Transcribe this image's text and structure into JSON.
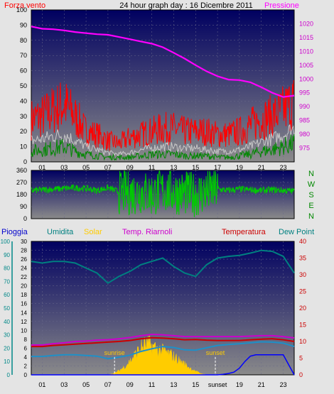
{
  "header": {
    "left_label": "Forza vento",
    "center_title": "24 hour graph day : 16 Dicembre 2011",
    "right_label": "Pressione"
  },
  "colors": {
    "background": "#e4e4e4",
    "plot_top": "#000060",
    "plot_bottom": "#8a8a8a",
    "wind": "#ff0000",
    "gust": "#ff0000",
    "wind_avg": "#c8c8c8",
    "wind_low": "#008800",
    "pressure": "#ff00ff",
    "direction": "#00cc00",
    "humidity": "#008080",
    "solar": "#ffcc00",
    "temp_inside": "#cc00cc",
    "temperature": "#cc0000",
    "dew_point": "#1e90c8",
    "rain": "#0000ff",
    "axis_left": "#000000",
    "axis_pressure": "#cc00cc",
    "axis_temp": "#cc0000",
    "axis_rain": "#008888"
  },
  "chart_data": [
    {
      "type": "line",
      "x_ticks": [
        "01",
        "03",
        "05",
        "07",
        "09",
        "11",
        "13",
        "15",
        "17",
        "19",
        "21",
        "23"
      ],
      "left_axis": {
        "range": [
          0,
          100
        ],
        "ticks": [
          0,
          10,
          20,
          30,
          40,
          50,
          60,
          70,
          80,
          90,
          100
        ]
      },
      "right_axis": {
        "range": [
          970,
          1025
        ],
        "ticks": [
          975,
          980,
          985,
          990,
          995,
          1000,
          1005,
          1010,
          1015,
          1020
        ]
      },
      "series": [
        {
          "name": "Pressione",
          "axis": "right",
          "x": [
            0,
            1,
            2,
            3,
            4,
            5,
            6,
            7,
            8,
            9,
            10,
            11,
            12,
            13,
            14,
            15,
            16,
            17,
            18,
            19,
            20,
            21,
            22,
            23,
            24
          ],
          "values": [
            1019,
            1018.2,
            1018,
            1017.6,
            1017,
            1016.6,
            1016.2,
            1016,
            1015.2,
            1014.4,
            1013.6,
            1012.8,
            1011.5,
            1009.5,
            1007.4,
            1005,
            1002.8,
            1001,
            999.8,
            999.6,
            998.8,
            997,
            995,
            993.5,
            994
          ]
        },
        {
          "name": "Raffica",
          "axis": "left",
          "x": [
            0,
            1,
            2,
            3,
            4,
            5,
            6,
            7,
            8,
            9,
            10,
            11,
            12,
            13,
            14,
            15,
            16,
            17,
            18,
            19,
            20,
            21,
            22,
            23,
            24
          ],
          "values": [
            28,
            30,
            34,
            38,
            30,
            20,
            18,
            14,
            12,
            16,
            18,
            20,
            22,
            22,
            20,
            20,
            20,
            18,
            18,
            20,
            24,
            28,
            30,
            34,
            40
          ]
        },
        {
          "name": "Media",
          "axis": "left",
          "x": [
            0,
            1,
            2,
            3,
            4,
            5,
            6,
            7,
            8,
            9,
            10,
            11,
            12,
            13,
            14,
            15,
            16,
            17,
            18,
            19,
            20,
            21,
            22,
            23,
            24
          ],
          "values": [
            14,
            15,
            17,
            18,
            14,
            10,
            8,
            6,
            5,
            6,
            8,
            9,
            10,
            10,
            9,
            9,
            8,
            7,
            7,
            8,
            10,
            13,
            15,
            18,
            22
          ]
        },
        {
          "name": "Vento",
          "axis": "left",
          "x": [
            0,
            1,
            2,
            3,
            4,
            5,
            6,
            7,
            8,
            9,
            10,
            11,
            12,
            13,
            14,
            15,
            16,
            17,
            18,
            19,
            20,
            21,
            22,
            23,
            24
          ],
          "values": [
            7,
            8,
            9,
            10,
            7,
            5,
            4,
            3,
            3,
            3,
            4,
            5,
            5,
            5,
            4,
            4,
            4,
            3,
            3,
            4,
            5,
            7,
            8,
            10,
            12
          ]
        }
      ]
    },
    {
      "type": "scatter",
      "x_ticks": [
        "01",
        "03",
        "05",
        "07",
        "09",
        "11",
        "13",
        "15",
        "17",
        "19",
        "21",
        "23"
      ],
      "left_axis": {
        "range": [
          0,
          360
        ],
        "ticks": [
          0,
          90,
          180,
          270,
          360
        ]
      },
      "right_labels": [
        "N",
        "W",
        "S",
        "E",
        "N"
      ],
      "series": [
        {
          "name": "Direzione",
          "x": [
            0,
            1,
            2,
            3,
            4,
            5,
            6,
            7,
            8,
            9,
            10,
            11,
            12,
            13,
            14,
            15,
            16,
            17,
            18,
            19,
            20,
            21,
            22,
            23,
            24
          ],
          "values": [
            210,
            215,
            220,
            225,
            230,
            225,
            210,
            230,
            200,
            190,
            200,
            180,
            210,
            200,
            190,
            180,
            200,
            220,
            210,
            220,
            215,
            210,
            215,
            210,
            205
          ]
        }
      ]
    },
    {
      "type": "line",
      "legend": [
        "Pioggia",
        "Umidita",
        "Solar",
        "Temp. Riarnoli",
        "Temperatura",
        "Dew Point"
      ],
      "x_ticks": [
        "01",
        "03",
        "05",
        "07",
        "09",
        "11",
        "13",
        "15",
        "sunset",
        "19",
        "21",
        "23"
      ],
      "annotations": [
        "sunrise",
        "sunset"
      ],
      "rain_axis": {
        "range": [
          0,
          100
        ],
        "ticks": [
          0,
          10,
          20,
          30,
          40,
          50,
          60,
          70,
          80,
          90,
          100
        ]
      },
      "inner_axis": {
        "range": [
          0,
          30
        ],
        "ticks": [
          0,
          2,
          4,
          6,
          8,
          10,
          12,
          14,
          16,
          18,
          20,
          22,
          24,
          26,
          28,
          30
        ]
      },
      "temp_axis": {
        "range": [
          0,
          40
        ],
        "ticks": [
          0,
          5,
          10,
          15,
          20,
          25,
          30,
          35,
          40
        ]
      },
      "series": [
        {
          "name": "Umidita",
          "axis": "temp",
          "x": [
            0,
            1,
            2,
            3,
            4,
            5,
            6,
            7,
            8,
            9,
            10,
            11,
            12,
            13,
            14,
            15,
            16,
            17,
            18,
            19,
            20,
            21,
            22,
            23,
            24
          ],
          "values": [
            34,
            33.5,
            34,
            34,
            33.5,
            32,
            30.5,
            27.5,
            29.5,
            31,
            33,
            34,
            35,
            32.5,
            30.5,
            29.5,
            33,
            35,
            35.5,
            35.8,
            36.5,
            37.3,
            37,
            35.5,
            30.5
          ]
        },
        {
          "name": "Temp. Riarnoli",
          "axis": "inner",
          "x": [
            0,
            1,
            2,
            3,
            4,
            5,
            6,
            7,
            8,
            9,
            10,
            11,
            12,
            13,
            14,
            15,
            16,
            17,
            18,
            19,
            20,
            21,
            22,
            23,
            24
          ],
          "values": [
            6.7,
            6.7,
            7,
            7.2,
            7.5,
            7.6,
            7.8,
            7.9,
            8.1,
            8.4,
            8.8,
            9.1,
            9,
            8.8,
            8.6,
            8.6,
            8.6,
            8.6,
            8.6,
            8.6,
            8.7,
            8.8,
            8.8,
            8.6,
            8.3
          ]
        },
        {
          "name": "Temperatura",
          "axis": "temp",
          "x": [
            0,
            1,
            2,
            3,
            4,
            5,
            6,
            7,
            8,
            9,
            10,
            11,
            12,
            13,
            14,
            15,
            16,
            17,
            18,
            19,
            20,
            21,
            22,
            23,
            24
          ],
          "values": [
            8.5,
            8.5,
            8.8,
            9,
            9.2,
            9.4,
            9.6,
            9.8,
            10,
            10.3,
            10.8,
            11.1,
            11,
            10.8,
            10.5,
            10.6,
            10.4,
            10.3,
            10.3,
            10.3,
            10.5,
            10.7,
            10.8,
            10.5,
            10
          ]
        },
        {
          "name": "Dew Point",
          "axis": "temp",
          "x": [
            0,
            1,
            2,
            3,
            4,
            5,
            6,
            7,
            8,
            9,
            10,
            11,
            12,
            13,
            14,
            15,
            16,
            17,
            18,
            19,
            20,
            21,
            22,
            23,
            24
          ],
          "values": [
            5.5,
            5.5,
            5.8,
            6,
            6,
            5.8,
            5.6,
            4.8,
            5.3,
            5.9,
            7,
            7.8,
            8.5,
            8.2,
            7.5,
            7.4,
            8.1,
            8.8,
            9.1,
            9.3,
            9.6,
            9.9,
            9.8,
            9.5,
            8.5
          ]
        },
        {
          "name": "Pioggia",
          "axis": "rain",
          "x": [
            0,
            1,
            2,
            3,
            4,
            5,
            6,
            7,
            8,
            9,
            10,
            11,
            12,
            13,
            14,
            15,
            16,
            17,
            17.5,
            18,
            18.5,
            19,
            19.5,
            20,
            20.5,
            21,
            22,
            23,
            24
          ],
          "values": [
            0,
            0,
            0,
            0,
            0,
            0,
            0,
            0,
            0,
            0,
            0,
            0,
            0,
            0,
            0,
            0,
            0,
            0,
            0.4,
            1,
            2,
            5,
            10,
            14,
            15,
            15,
            15,
            15,
            0
          ]
        },
        {
          "name": "Solar",
          "axis": "inner",
          "x": [
            7,
            7.5,
            8,
            8.5,
            9,
            9.5,
            10,
            10.5,
            11,
            11.5,
            12,
            12.5,
            13,
            13.5,
            14,
            14.5,
            15,
            15.5,
            16
          ],
          "values": [
            0,
            0.3,
            0.9,
            1.8,
            3,
            4.5,
            6,
            6.8,
            6.5,
            5.8,
            5.2,
            4.8,
            4.1,
            3.2,
            2.4,
            1.5,
            0.8,
            0.3,
            0
          ]
        }
      ]
    }
  ]
}
